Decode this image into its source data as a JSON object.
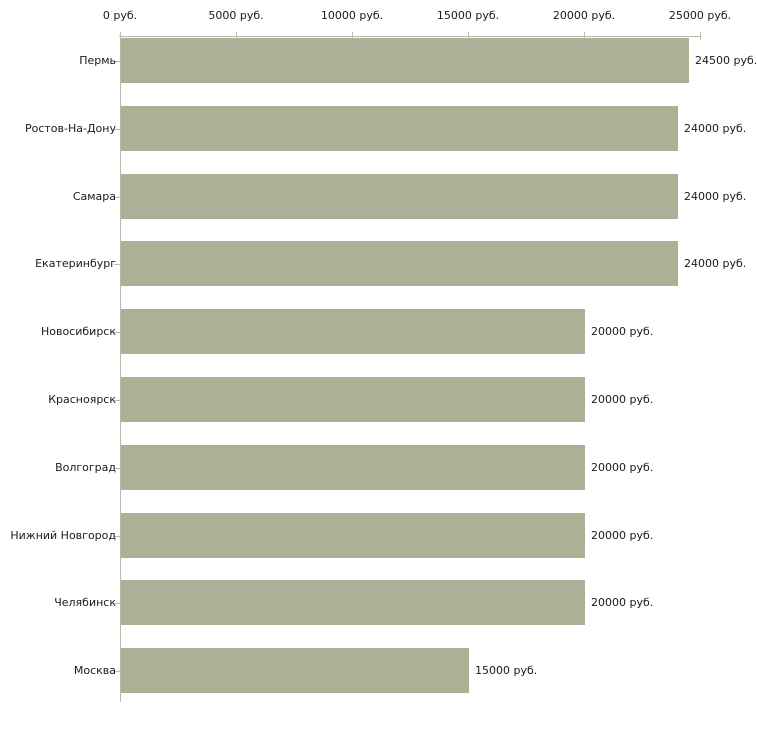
{
  "chart_data": {
    "type": "bar",
    "orientation": "horizontal",
    "title": "",
    "xlabel": "",
    "ylabel": "",
    "categories": [
      "Пермь",
      "Ростов-На-Дону",
      "Самара",
      "Екатеринбург",
      "Новосибирск",
      "Красноярск",
      "Волгоград",
      "Нижний Новгород",
      "Челябинск",
      "Москва"
    ],
    "values": [
      24500,
      24000,
      24000,
      24000,
      20000,
      20000,
      20000,
      20000,
      20000,
      15000
    ],
    "value_labels": [
      "24500 руб.",
      "24000 руб.",
      "24000 руб.",
      "24000 руб.",
      "20000 руб.",
      "20000 руб.",
      "20000 руб.",
      "20000 руб.",
      "20000 руб.",
      "15000 руб."
    ],
    "x_axis": {
      "position": "top",
      "min": 0,
      "max": 25000,
      "tick_step": 5000,
      "tick_values": [
        0,
        5000,
        10000,
        15000,
        20000,
        25000
      ],
      "tick_labels": [
        "0 руб.",
        "5000 руб.",
        "10000 руб.",
        "15000 руб.",
        "20000 руб.",
        "25000 руб."
      ]
    },
    "grid": false,
    "legend": "none",
    "colors": {
      "bar": "#acb097",
      "axis": "#b9b9ac",
      "text": "#1a1a1a",
      "background": "#ffffff"
    }
  }
}
